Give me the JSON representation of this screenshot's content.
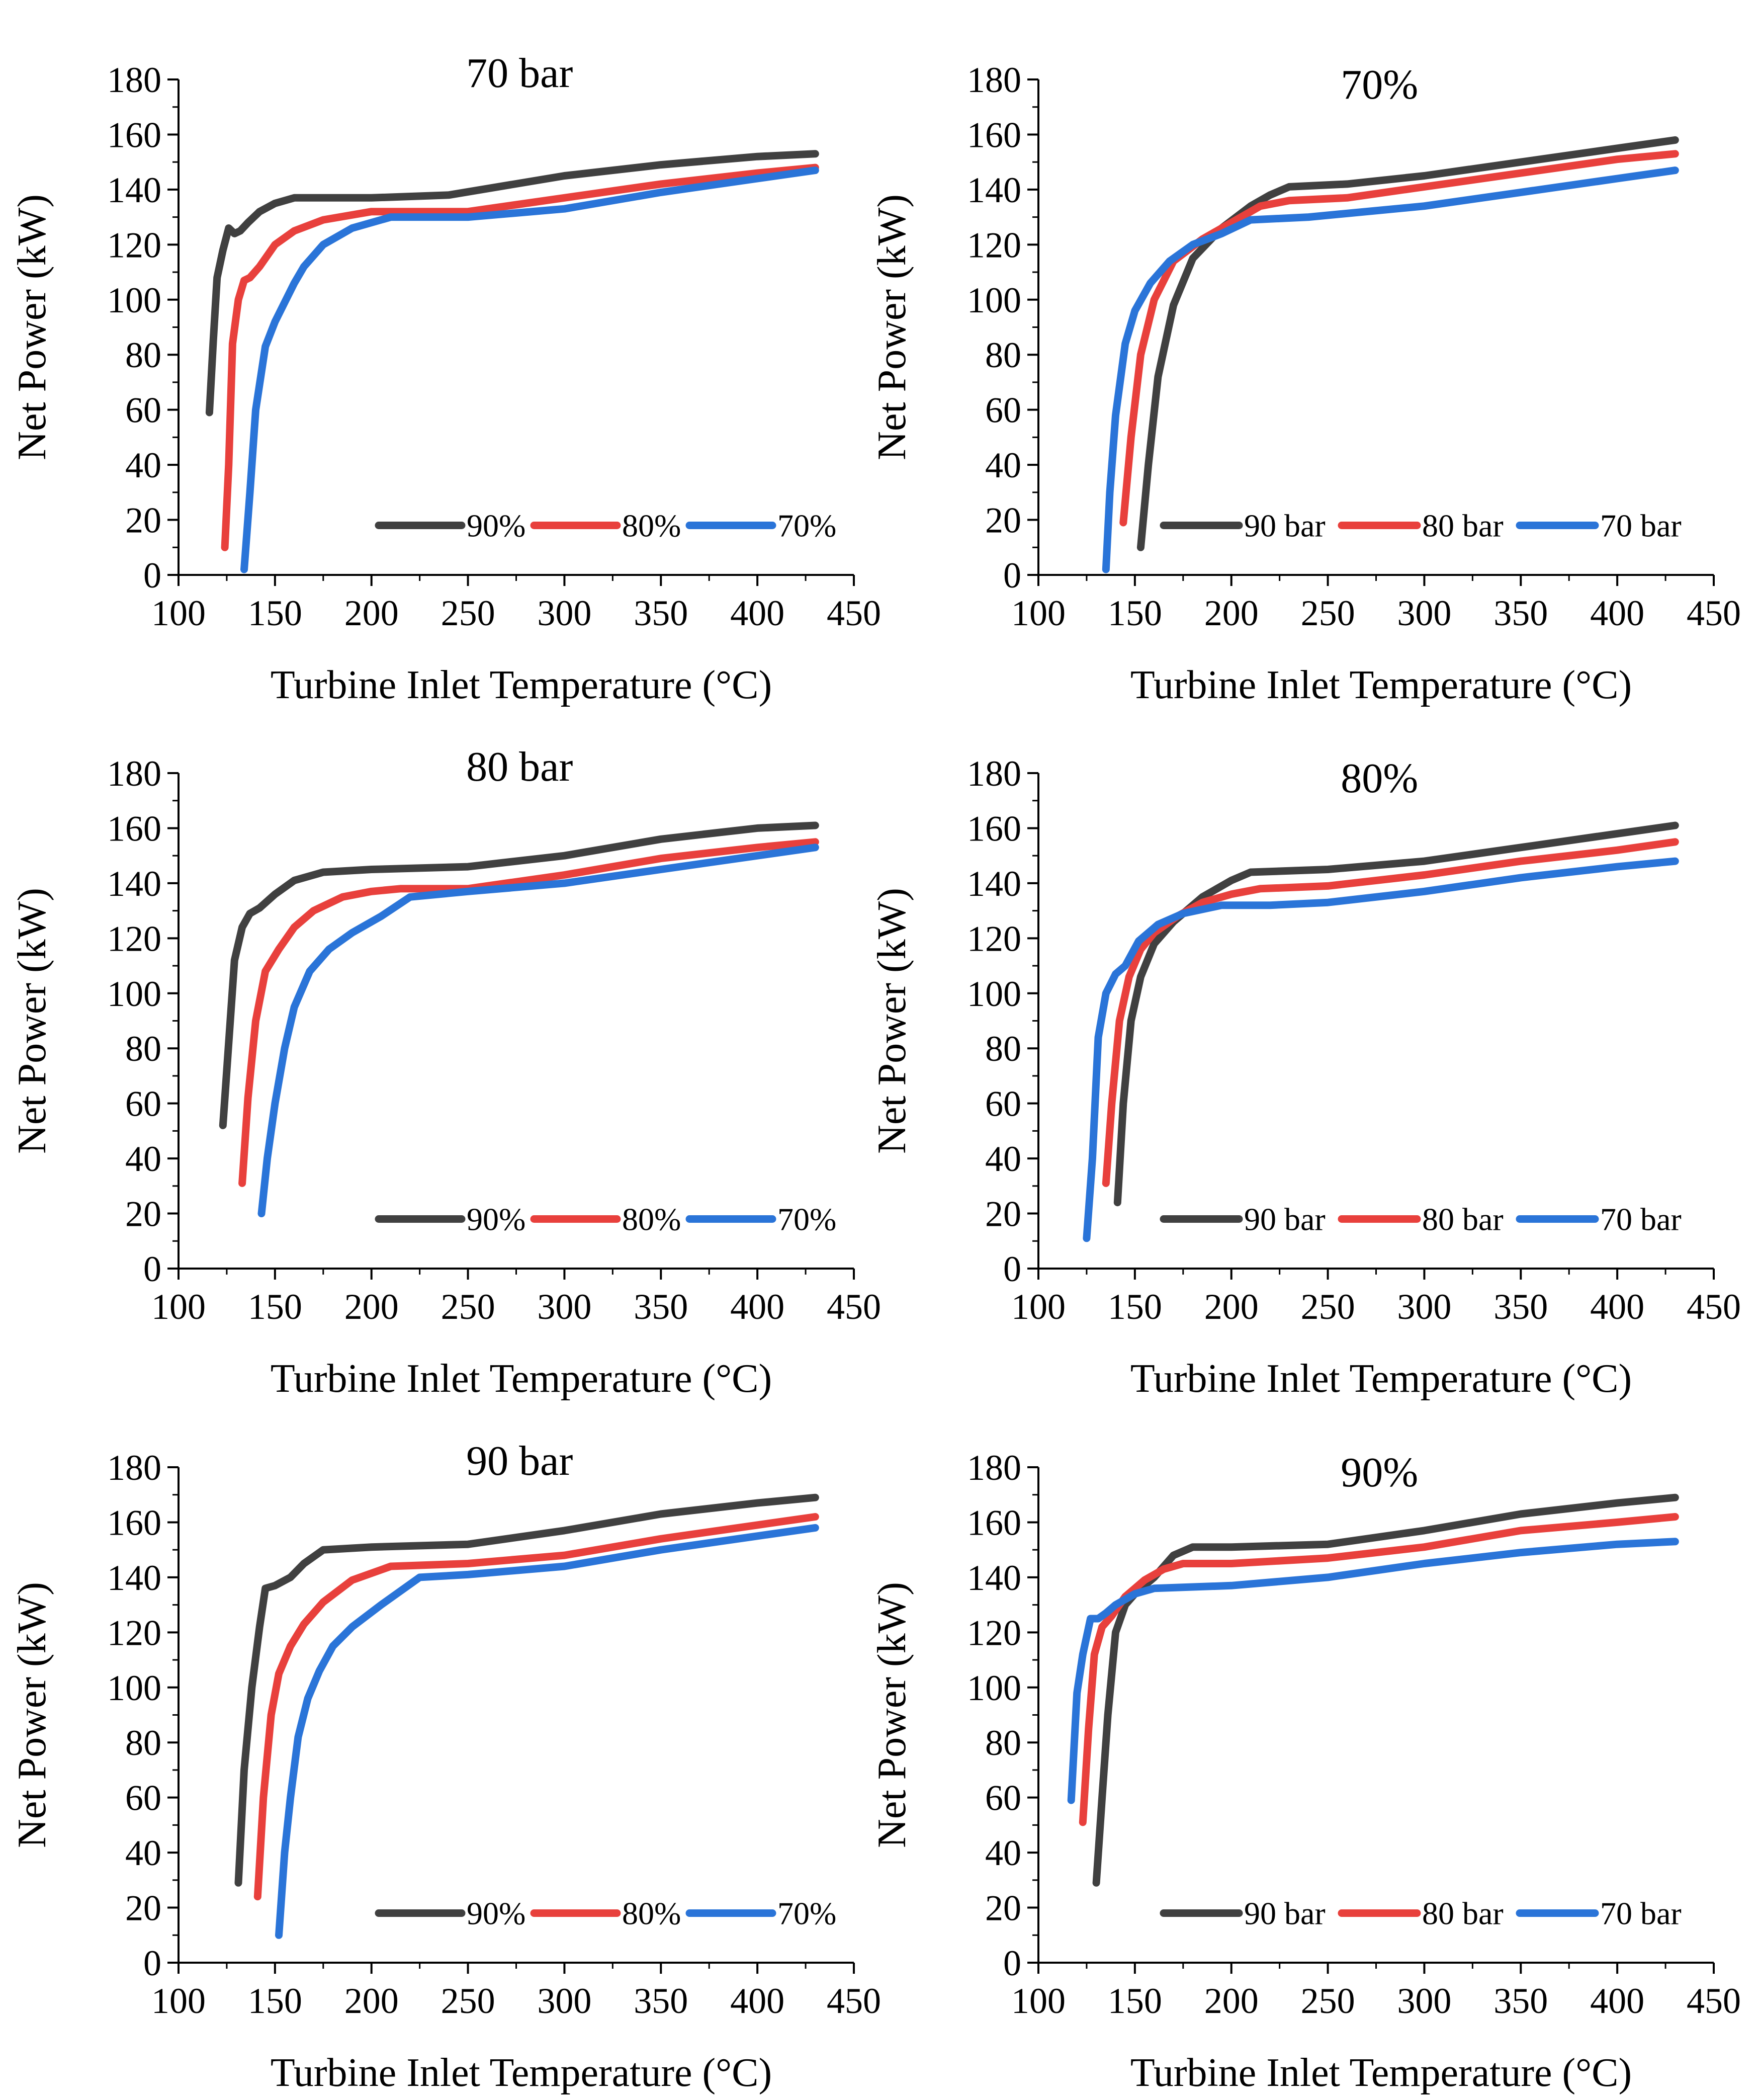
{
  "colors": {
    "dark": "#404040",
    "red": "#e8403c",
    "blue": "#2a74d8"
  },
  "chart_data": [
    {
      "type": "line",
      "title": "70 bar",
      "xlabel": "Turbine Inlet Temperature (°C)",
      "ylabel": "Net Power (kW)",
      "xlim": [
        100,
        450
      ],
      "ylim": [
        0,
        180
      ],
      "xticks": [
        "100",
        "150",
        "200",
        "250",
        "300",
        "350",
        "400",
        "450"
      ],
      "yticks": [
        "0",
        "20",
        "40",
        "60",
        "80",
        "100",
        "120",
        "140",
        "160",
        "180"
      ],
      "legend": "bottom-right",
      "series": [
        {
          "name": "90%",
          "color": "#404040",
          "x": [
            116,
            118,
            120,
            123,
            126,
            129,
            132,
            136,
            142,
            150,
            160,
            175,
            200,
            240,
            300,
            350,
            400,
            430
          ],
          "y": [
            59,
            85,
            108,
            118,
            126,
            124,
            125,
            128,
            132,
            135,
            137,
            137,
            137,
            138,
            145,
            149,
            152,
            153
          ]
        },
        {
          "name": "80%",
          "color": "#e8403c",
          "x": [
            124,
            126,
            128,
            131,
            134,
            137,
            142,
            150,
            160,
            175,
            200,
            250,
            300,
            350,
            400,
            430
          ],
          "y": [
            10,
            40,
            84,
            100,
            107,
            108,
            112,
            120,
            125,
            129,
            132,
            132,
            137,
            142,
            146,
            148
          ]
        },
        {
          "name": "70%",
          "color": "#2a74d8",
          "x": [
            134,
            137,
            140,
            145,
            150,
            155,
            160,
            165,
            175,
            190,
            210,
            250,
            300,
            350,
            400,
            430
          ],
          "y": [
            2,
            30,
            60,
            83,
            92,
            99,
            106,
            112,
            120,
            126,
            130,
            130,
            133,
            139,
            144,
            147
          ]
        }
      ]
    },
    {
      "type": "line",
      "title": "70%",
      "xlabel": "Turbine Inlet Temperature (°C)",
      "ylabel": "Net Power (kW)",
      "xlim": [
        100,
        450
      ],
      "ylim": [
        0,
        180
      ],
      "xticks": [
        "100",
        "150",
        "200",
        "250",
        "300",
        "350",
        "400",
        "450"
      ],
      "yticks": [
        "0",
        "20",
        "40",
        "60",
        "80",
        "100",
        "120",
        "140",
        "160",
        "180"
      ],
      "legend": "bottom-right",
      "series": [
        {
          "name": "90 bar",
          "color": "#404040",
          "x": [
            153,
            157,
            162,
            170,
            180,
            195,
            210,
            220,
            230,
            260,
            300,
            350,
            400,
            430
          ],
          "y": [
            10,
            40,
            72,
            98,
            115,
            126,
            134,
            138,
            141,
            142,
            145,
            150,
            155,
            158
          ]
        },
        {
          "name": "80 bar",
          "color": "#e8403c",
          "x": [
            144,
            148,
            153,
            160,
            170,
            185,
            200,
            215,
            230,
            260,
            300,
            350,
            400,
            430
          ],
          "y": [
            19,
            50,
            80,
            100,
            114,
            122,
            128,
            134,
            136,
            137,
            141,
            146,
            151,
            153
          ]
        },
        {
          "name": "70 bar",
          "color": "#2a74d8",
          "x": [
            135,
            137,
            140,
            145,
            150,
            158,
            168,
            180,
            195,
            210,
            240,
            300,
            350,
            400,
            430
          ],
          "y": [
            2,
            30,
            58,
            84,
            96,
            106,
            114,
            120,
            124,
            129,
            130,
            134,
            139,
            144,
            147
          ]
        }
      ]
    },
    {
      "type": "line",
      "title": "80 bar",
      "xlabel": "Turbine Inlet Temperature (°C)",
      "ylabel": "Net Power (kW)",
      "xlim": [
        100,
        450
      ],
      "ylim": [
        0,
        180
      ],
      "xticks": [
        "100",
        "150",
        "200",
        "250",
        "300",
        "350",
        "400",
        "450"
      ],
      "yticks": [
        "0",
        "20",
        "40",
        "60",
        "80",
        "100",
        "120",
        "140",
        "160",
        "180"
      ],
      "legend": "bottom-right",
      "series": [
        {
          "name": "90%",
          "color": "#404040",
          "x": [
            123,
            126,
            129,
            133,
            137,
            142,
            150,
            160,
            175,
            200,
            250,
            300,
            350,
            400,
            430
          ],
          "y": [
            52,
            82,
            112,
            124,
            129,
            131,
            136,
            141,
            144,
            145,
            146,
            150,
            156,
            160,
            161
          ]
        },
        {
          "name": "80%",
          "color": "#e8403c",
          "x": [
            133,
            136,
            140,
            145,
            152,
            160,
            170,
            185,
            200,
            215,
            250,
            300,
            350,
            400,
            430
          ],
          "y": [
            31,
            62,
            90,
            108,
            116,
            124,
            130,
            135,
            137,
            138,
            138,
            143,
            149,
            153,
            155
          ]
        },
        {
          "name": "70%",
          "color": "#2a74d8",
          "x": [
            143,
            146,
            150,
            155,
            160,
            168,
            178,
            190,
            205,
            220,
            250,
            300,
            350,
            400,
            430
          ],
          "y": [
            20,
            40,
            60,
            80,
            95,
            108,
            116,
            122,
            128,
            135,
            137,
            140,
            145,
            150,
            153
          ]
        }
      ]
    },
    {
      "type": "line",
      "title": "80%",
      "xlabel": "Turbine Inlet Temperature (°C)",
      "ylabel": "Net Power (kW)",
      "xlim": [
        100,
        450
      ],
      "ylim": [
        0,
        180
      ],
      "xticks": [
        "100",
        "150",
        "200",
        "250",
        "300",
        "350",
        "400",
        "450"
      ],
      "yticks": [
        "0",
        "20",
        "40",
        "60",
        "80",
        "100",
        "120",
        "140",
        "160",
        "180"
      ],
      "legend": "bottom-right",
      "series": [
        {
          "name": "90 bar",
          "color": "#404040",
          "x": [
            141,
            144,
            148,
            153,
            160,
            170,
            185,
            200,
            210,
            250,
            300,
            350,
            400,
            430
          ],
          "y": [
            24,
            60,
            90,
            106,
            118,
            126,
            135,
            141,
            144,
            145,
            148,
            153,
            158,
            161
          ]
        },
        {
          "name": "80 bar",
          "color": "#e8403c",
          "x": [
            135,
            138,
            142,
            147,
            153,
            160,
            172,
            185,
            200,
            215,
            250,
            300,
            350,
            400,
            430
          ],
          "y": [
            31,
            60,
            90,
            106,
            116,
            122,
            128,
            133,
            136,
            138,
            139,
            143,
            148,
            152,
            155
          ]
        },
        {
          "name": "70 bar",
          "color": "#2a74d8",
          "x": [
            125,
            128,
            131,
            135,
            140,
            145,
            152,
            162,
            175,
            195,
            220,
            250,
            300,
            350,
            400,
            430
          ],
          "y": [
            11,
            40,
            84,
            100,
            107,
            110,
            119,
            125,
            129,
            132,
            132,
            133,
            137,
            142,
            146,
            148
          ]
        }
      ]
    },
    {
      "type": "line",
      "title": "90 bar",
      "xlabel": "Turbine Inlet Temperature (°C)",
      "ylabel": "Net Power (kW)",
      "xlim": [
        100,
        450
      ],
      "ylim": [
        0,
        180
      ],
      "xticks": [
        "100",
        "150",
        "200",
        "250",
        "300",
        "350",
        "400",
        "450"
      ],
      "yticks": [
        "0",
        "20",
        "40",
        "60",
        "80",
        "100",
        "120",
        "140",
        "160",
        "180"
      ],
      "legend": "bottom-right",
      "series": [
        {
          "name": "90%",
          "color": "#404040",
          "x": [
            131,
            134,
            138,
            142,
            145,
            150,
            158,
            165,
            175,
            200,
            250,
            300,
            350,
            400,
            430
          ],
          "y": [
            29,
            70,
            100,
            122,
            136,
            137,
            140,
            145,
            150,
            151,
            152,
            157,
            163,
            167,
            169
          ]
        },
        {
          "name": "80%",
          "color": "#e8403c",
          "x": [
            141,
            144,
            148,
            152,
            158,
            165,
            175,
            190,
            210,
            250,
            300,
            350,
            400,
            430
          ],
          "y": [
            24,
            60,
            90,
            105,
            115,
            123,
            131,
            139,
            144,
            145,
            148,
            154,
            159,
            162
          ]
        },
        {
          "name": "70%",
          "color": "#2a74d8",
          "x": [
            152,
            155,
            158,
            162,
            167,
            173,
            180,
            190,
            205,
            225,
            250,
            300,
            350,
            400,
            430
          ],
          "y": [
            10,
            40,
            60,
            82,
            96,
            106,
            115,
            122,
            130,
            140,
            141,
            144,
            150,
            155,
            158
          ]
        }
      ]
    },
    {
      "type": "line",
      "title": "90%",
      "xlabel": "Turbine Inlet Temperature (°C)",
      "ylabel": "Net Power (kW)",
      "xlim": [
        100,
        450
      ],
      "ylim": [
        0,
        180
      ],
      "xticks": [
        "100",
        "150",
        "200",
        "250",
        "300",
        "350",
        "400",
        "450"
      ],
      "yticks": [
        "0",
        "20",
        "40",
        "60",
        "80",
        "100",
        "120",
        "140",
        "160",
        "180"
      ],
      "legend": "bottom-right",
      "series": [
        {
          "name": "90 bar",
          "color": "#404040",
          "x": [
            130,
            133,
            136,
            140,
            145,
            150,
            160,
            170,
            180,
            200,
            250,
            300,
            350,
            400,
            430
          ],
          "y": [
            29,
            60,
            90,
            120,
            130,
            134,
            140,
            148,
            151,
            151,
            152,
            157,
            163,
            167,
            169
          ]
        },
        {
          "name": "80 bar",
          "color": "#e8403c",
          "x": [
            123,
            126,
            129,
            133,
            138,
            145,
            155,
            165,
            175,
            200,
            250,
            300,
            350,
            400,
            430
          ],
          "y": [
            51,
            85,
            112,
            122,
            126,
            133,
            139,
            143,
            145,
            145,
            147,
            151,
            157,
            160,
            162
          ]
        },
        {
          "name": "70 bar",
          "color": "#2a74d8",
          "x": [
            117,
            120,
            123,
            127,
            131,
            135,
            140,
            150,
            160,
            200,
            250,
            300,
            350,
            400,
            430
          ],
          "y": [
            59,
            98,
            112,
            125,
            125,
            127,
            130,
            134,
            136,
            137,
            140,
            145,
            149,
            152,
            153
          ]
        }
      ]
    }
  ]
}
